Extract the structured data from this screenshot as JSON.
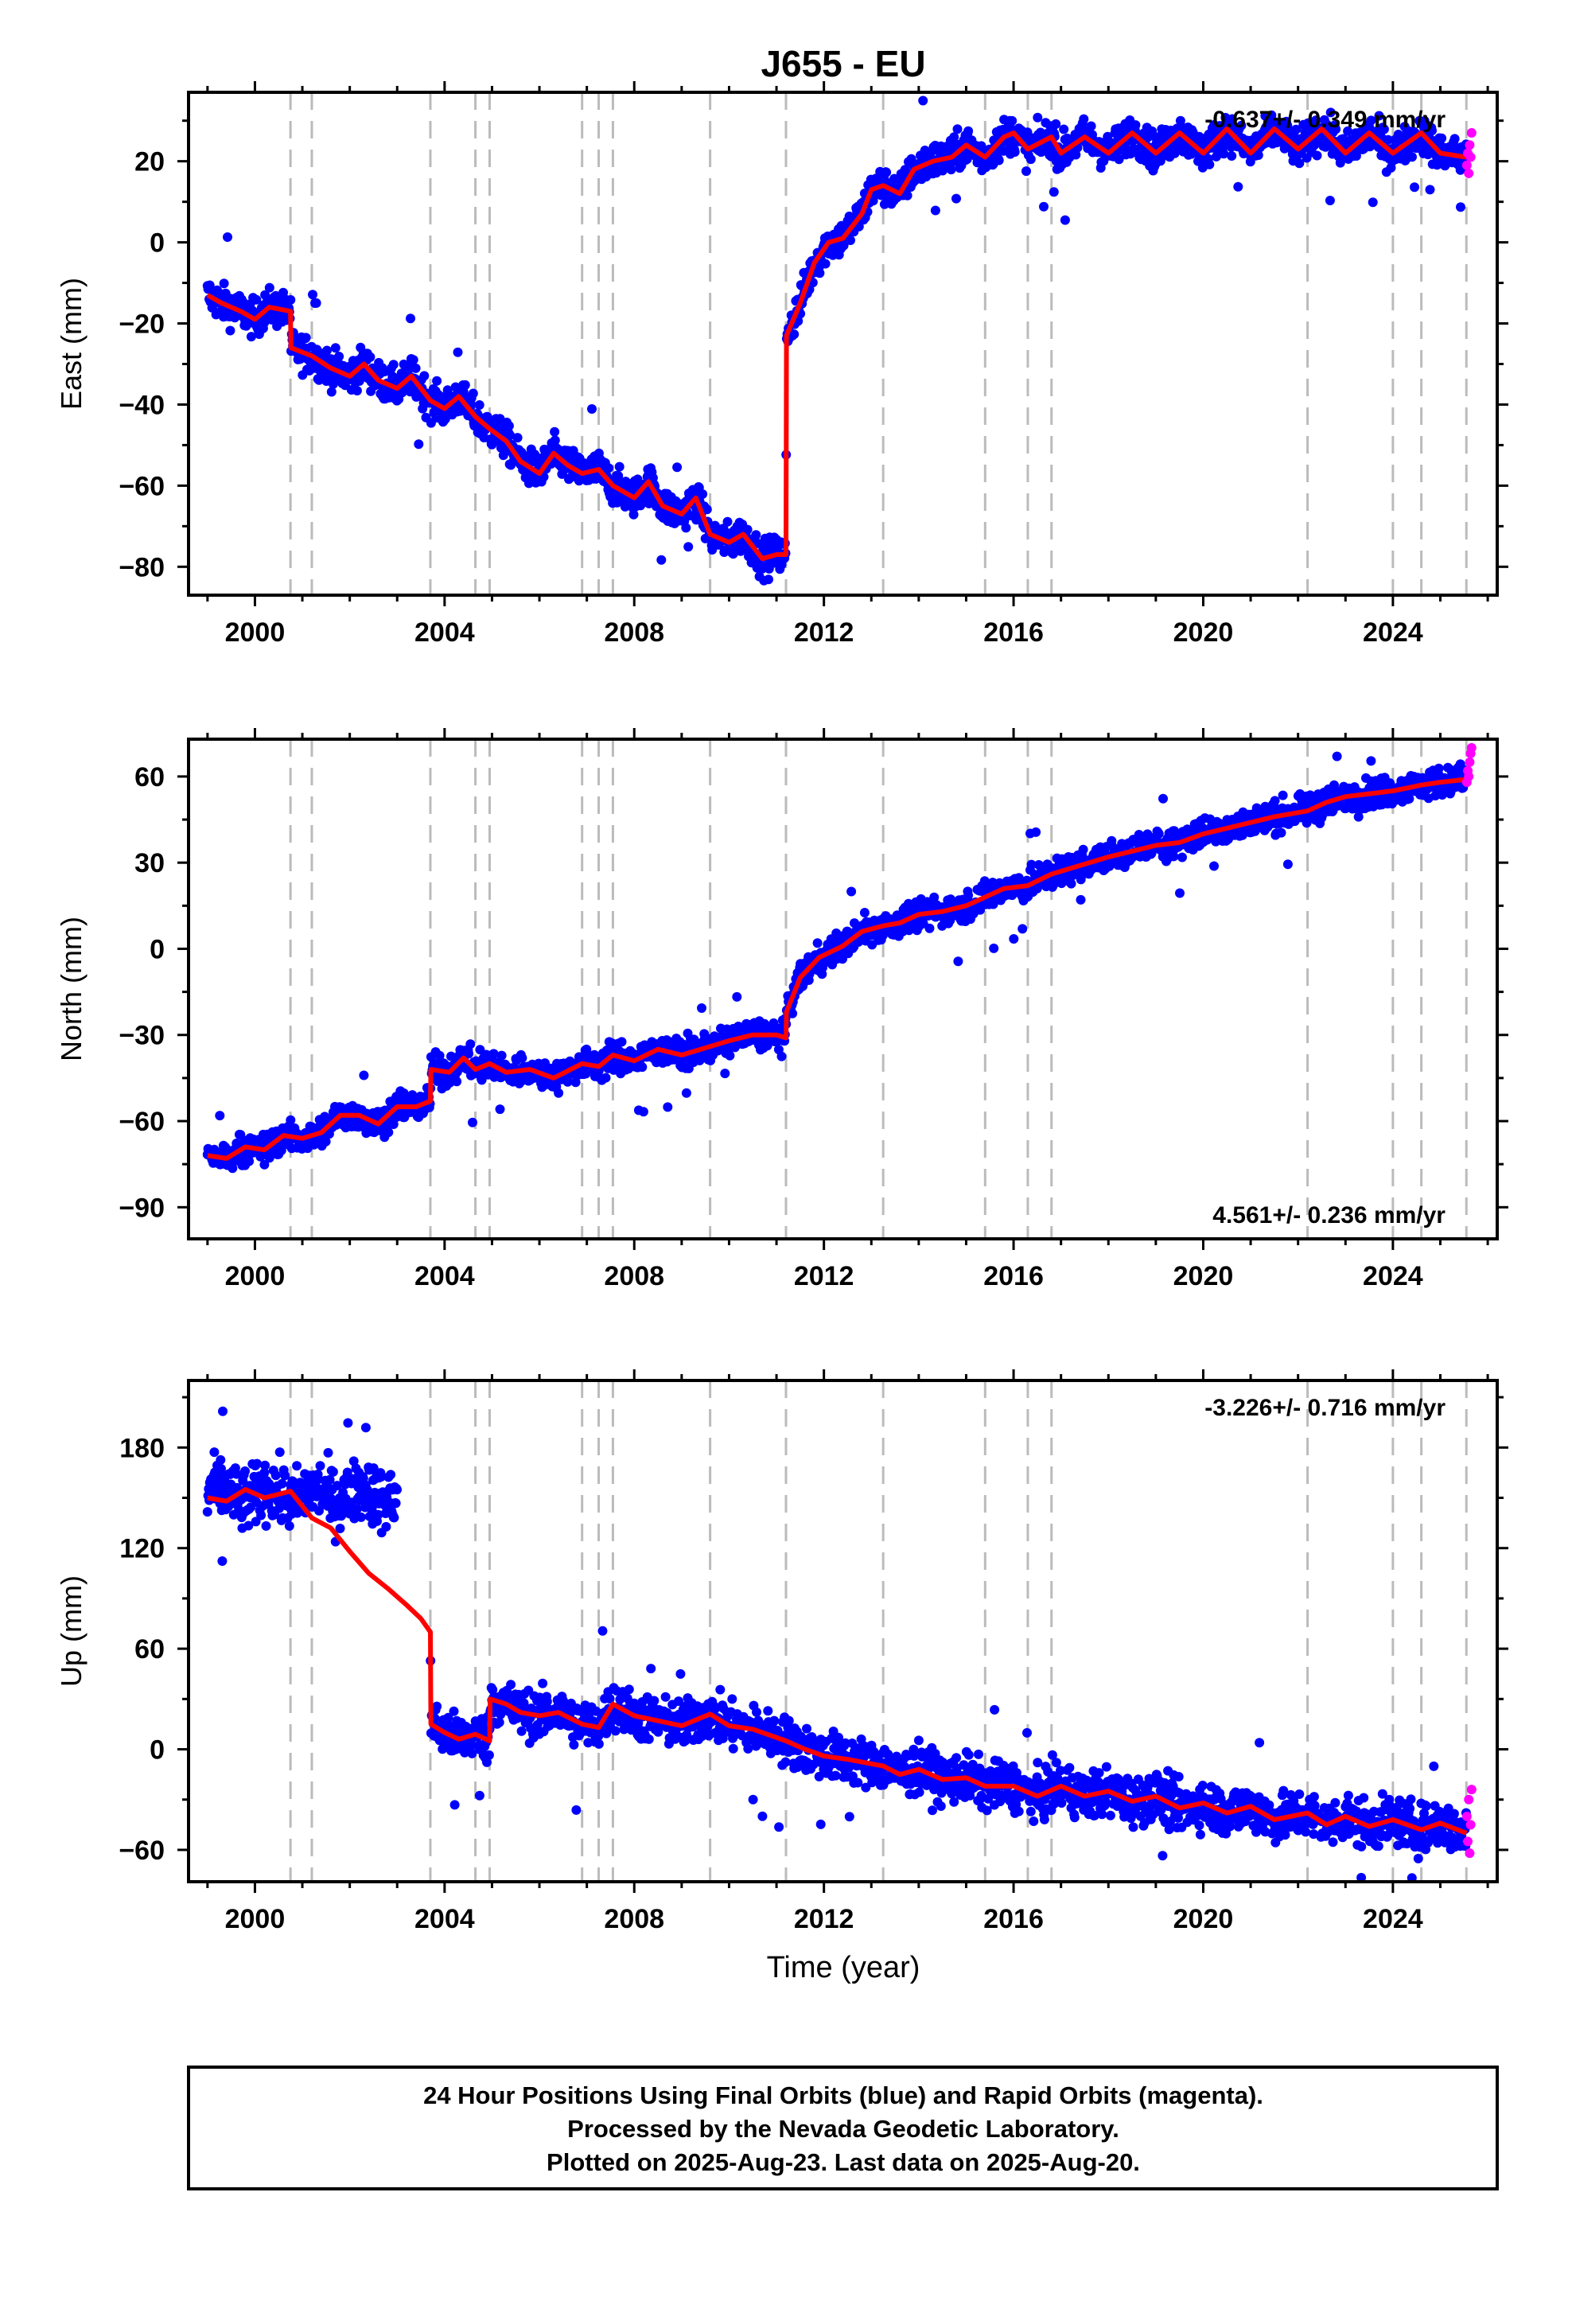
{
  "chart_data": {
    "title": "J655 - EU",
    "type": "scatter",
    "x_label": "Time (year)",
    "x_range": [
      1998.6,
      2026.2
    ],
    "x_ticks": [
      2000,
      2004,
      2008,
      2012,
      2016,
      2020,
      2024
    ],
    "x_tick_labels": [
      "2000",
      "2004",
      "2008",
      "2012",
      "2016",
      "2020",
      "2024"
    ],
    "grid": false,
    "legend": "none",
    "colors": {
      "final_orbits": "#0000ff",
      "rapid_orbits": "#ff00ff",
      "model": "#ff0000",
      "offset_lines": "#bbbbbb"
    },
    "offset_epochs": [
      2000.75,
      2001.2,
      2003.7,
      2004.65,
      2004.95,
      2006.9,
      2007.25,
      2007.55,
      2009.6,
      2011.2,
      2013.25,
      2015.4,
      2016.3,
      2016.8,
      2022.2,
      2024.0,
      2024.6,
      2025.55
    ],
    "panels": [
      {
        "ylabel": "East (mm)",
        "ylim": [
          -87,
          37
        ],
        "y_ticks": [
          -80,
          -60,
          -40,
          -20,
          0,
          20
        ],
        "y_tick_labels": [
          "−80",
          "−60",
          "−40",
          "−20",
          "0",
          "20"
        ],
        "rate_text": "-0.637+/- 0.349 mm/yr",
        "rate_position": "top-right",
        "model_curve": [
          [
            1999.0,
            -13
          ],
          [
            1999.3,
            -15
          ],
          [
            1999.7,
            -17
          ],
          [
            2000.0,
            -19
          ],
          [
            2000.3,
            -16
          ],
          [
            2000.75,
            -17
          ],
          [
            2000.76,
            -26
          ],
          [
            2001.2,
            -28
          ],
          [
            2001.6,
            -31
          ],
          [
            2002.0,
            -33
          ],
          [
            2002.3,
            -30
          ],
          [
            2002.6,
            -34
          ],
          [
            2003.0,
            -36
          ],
          [
            2003.3,
            -33
          ],
          [
            2003.7,
            -39
          ],
          [
            2004.0,
            -41
          ],
          [
            2004.3,
            -38
          ],
          [
            2004.65,
            -43
          ],
          [
            2004.95,
            -46
          ],
          [
            2005.3,
            -49
          ],
          [
            2005.6,
            -54
          ],
          [
            2006.0,
            -57
          ],
          [
            2006.3,
            -52
          ],
          [
            2006.6,
            -55
          ],
          [
            2006.9,
            -57
          ],
          [
            2007.25,
            -56
          ],
          [
            2007.55,
            -60
          ],
          [
            2008.0,
            -63
          ],
          [
            2008.3,
            -59
          ],
          [
            2008.6,
            -65
          ],
          [
            2009.0,
            -67
          ],
          [
            2009.3,
            -63
          ],
          [
            2009.6,
            -72
          ],
          [
            2010.0,
            -74
          ],
          [
            2010.3,
            -72
          ],
          [
            2010.7,
            -78
          ],
          [
            2011.0,
            -77
          ],
          [
            2011.2,
            -77
          ],
          [
            2011.21,
            -23
          ],
          [
            2011.5,
            -15
          ],
          [
            2011.8,
            -5
          ],
          [
            2012.1,
            0
          ],
          [
            2012.4,
            1
          ],
          [
            2012.8,
            7
          ],
          [
            2013.0,
            13
          ],
          [
            2013.25,
            14
          ],
          [
            2013.6,
            12
          ],
          [
            2013.9,
            18
          ],
          [
            2014.3,
            20
          ],
          [
            2014.7,
            21
          ],
          [
            2015.0,
            24
          ],
          [
            2015.4,
            21
          ],
          [
            2015.8,
            26
          ],
          [
            2016.0,
            27
          ],
          [
            2016.3,
            23
          ],
          [
            2016.8,
            26
          ],
          [
            2017.0,
            22
          ],
          [
            2017.5,
            26
          ],
          [
            2018.0,
            22
          ],
          [
            2018.5,
            27
          ],
          [
            2019.0,
            22
          ],
          [
            2019.5,
            27
          ],
          [
            2020.0,
            22
          ],
          [
            2020.5,
            28
          ],
          [
            2021.0,
            22
          ],
          [
            2021.5,
            28
          ],
          [
            2022.0,
            23
          ],
          [
            2022.5,
            28
          ],
          [
            2023.0,
            22
          ],
          [
            2023.5,
            27
          ],
          [
            2024.0,
            22
          ],
          [
            2024.6,
            27
          ],
          [
            2025.0,
            22
          ],
          [
            2025.55,
            21
          ]
        ],
        "rapid_points": [
          [
            2025.56,
            19
          ],
          [
            2025.58,
            22
          ],
          [
            2025.6,
            17
          ],
          [
            2025.62,
            24
          ],
          [
            2025.64,
            21
          ],
          [
            2025.66,
            27
          ]
        ]
      },
      {
        "ylabel": "North (mm)",
        "ylim": [
          -101,
          73
        ],
        "y_ticks": [
          -90,
          -60,
          -30,
          0,
          30,
          60
        ],
        "y_tick_labels": [
          "−90",
          "−60",
          "−30",
          "0",
          "30",
          "60"
        ],
        "rate_text": "4.561+/- 0.236 mm/yr",
        "rate_position": "bottom-right",
        "model_curve": [
          [
            1999.0,
            -72
          ],
          [
            1999.4,
            -73
          ],
          [
            1999.8,
            -69
          ],
          [
            2000.2,
            -70
          ],
          [
            2000.6,
            -65
          ],
          [
            2001.0,
            -66
          ],
          [
            2001.4,
            -64
          ],
          [
            2001.8,
            -58
          ],
          [
            2002.2,
            -58
          ],
          [
            2002.6,
            -61
          ],
          [
            2003.0,
            -55
          ],
          [
            2003.4,
            -55
          ],
          [
            2003.7,
            -53
          ],
          [
            2003.71,
            -42
          ],
          [
            2004.1,
            -43
          ],
          [
            2004.4,
            -38
          ],
          [
            2004.65,
            -42
          ],
          [
            2004.95,
            -40
          ],
          [
            2005.3,
            -43
          ],
          [
            2005.8,
            -42
          ],
          [
            2006.3,
            -45
          ],
          [
            2006.9,
            -40
          ],
          [
            2007.25,
            -41
          ],
          [
            2007.55,
            -37
          ],
          [
            2008.0,
            -39
          ],
          [
            2008.5,
            -35
          ],
          [
            2009.0,
            -37
          ],
          [
            2009.6,
            -34
          ],
          [
            2010.0,
            -32
          ],
          [
            2010.5,
            -30
          ],
          [
            2011.0,
            -30
          ],
          [
            2011.2,
            -31
          ],
          [
            2011.21,
            -22
          ],
          [
            2011.5,
            -10
          ],
          [
            2011.9,
            -3
          ],
          [
            2012.4,
            1
          ],
          [
            2012.8,
            6
          ],
          [
            2013.25,
            8
          ],
          [
            2013.6,
            9
          ],
          [
            2014.0,
            12
          ],
          [
            2014.5,
            13
          ],
          [
            2015.0,
            15
          ],
          [
            2015.4,
            18
          ],
          [
            2015.8,
            21
          ],
          [
            2016.3,
            22
          ],
          [
            2016.8,
            26
          ],
          [
            2017.2,
            28
          ],
          [
            2017.6,
            30
          ],
          [
            2018.0,
            32
          ],
          [
            2018.5,
            34
          ],
          [
            2019.0,
            36
          ],
          [
            2019.5,
            37
          ],
          [
            2020.0,
            40
          ],
          [
            2020.5,
            42
          ],
          [
            2021.0,
            44
          ],
          [
            2021.5,
            46
          ],
          [
            2022.2,
            48
          ],
          [
            2022.6,
            51
          ],
          [
            2023.0,
            53
          ],
          [
            2023.5,
            54
          ],
          [
            2024.0,
            55
          ],
          [
            2024.6,
            57
          ],
          [
            2025.0,
            58
          ],
          [
            2025.55,
            59
          ]
        ],
        "rapid_points": [
          [
            2025.56,
            58
          ],
          [
            2025.58,
            62
          ],
          [
            2025.6,
            60
          ],
          [
            2025.62,
            65
          ],
          [
            2025.64,
            68
          ],
          [
            2025.66,
            70
          ]
        ]
      },
      {
        "ylabel": "Up (mm)",
        "ylim": [
          -79,
          220
        ],
        "y_ticks": [
          -60,
          0,
          60,
          120,
          180
        ],
        "y_tick_labels": [
          "−60",
          "0",
          "60",
          "120",
          "180"
        ],
        "rate_text": "-3.226+/- 0.716 mm/yr",
        "rate_position": "top-right",
        "data_gap": [
          2003.0,
          2003.7
        ],
        "model_curve": [
          [
            1999.0,
            150
          ],
          [
            1999.4,
            148
          ],
          [
            1999.8,
            155
          ],
          [
            2000.2,
            150
          ],
          [
            2000.75,
            154
          ],
          [
            2001.2,
            138
          ],
          [
            2001.6,
            132
          ],
          [
            2002.0,
            118
          ],
          [
            2002.4,
            105
          ],
          [
            2002.8,
            96
          ],
          [
            2003.2,
            86
          ],
          [
            2003.5,
            78
          ],
          [
            2003.7,
            70
          ],
          [
            2003.71,
            15
          ],
          [
            2004.0,
            10
          ],
          [
            2004.3,
            6
          ],
          [
            2004.65,
            9
          ],
          [
            2004.95,
            5
          ],
          [
            2004.96,
            30
          ],
          [
            2005.3,
            27
          ],
          [
            2005.6,
            22
          ],
          [
            2006.0,
            20
          ],
          [
            2006.4,
            22
          ],
          [
            2006.9,
            15
          ],
          [
            2007.25,
            13
          ],
          [
            2007.55,
            27
          ],
          [
            2008.0,
            20
          ],
          [
            2008.5,
            17
          ],
          [
            2009.0,
            14
          ],
          [
            2009.6,
            21
          ],
          [
            2010.0,
            14
          ],
          [
            2010.5,
            12
          ],
          [
            2011.2,
            5
          ],
          [
            2011.6,
            0
          ],
          [
            2012.0,
            -4
          ],
          [
            2012.5,
            -6
          ],
          [
            2013.25,
            -10
          ],
          [
            2013.6,
            -15
          ],
          [
            2014.0,
            -12
          ],
          [
            2014.5,
            -18
          ],
          [
            2015.0,
            -17
          ],
          [
            2015.4,
            -22
          ],
          [
            2016.0,
            -22
          ],
          [
            2016.5,
            -28
          ],
          [
            2017.0,
            -22
          ],
          [
            2017.5,
            -28
          ],
          [
            2018.0,
            -25
          ],
          [
            2018.5,
            -31
          ],
          [
            2019.0,
            -28
          ],
          [
            2019.5,
            -35
          ],
          [
            2020.0,
            -32
          ],
          [
            2020.5,
            -38
          ],
          [
            2021.0,
            -34
          ],
          [
            2021.5,
            -42
          ],
          [
            2022.2,
            -38
          ],
          [
            2022.6,
            -45
          ],
          [
            2023.0,
            -40
          ],
          [
            2023.5,
            -46
          ],
          [
            2024.0,
            -42
          ],
          [
            2024.6,
            -48
          ],
          [
            2025.0,
            -44
          ],
          [
            2025.55,
            -50
          ]
        ],
        "rapid_points": [
          [
            2025.56,
            -40
          ],
          [
            2025.58,
            -55
          ],
          [
            2025.6,
            -30
          ],
          [
            2025.62,
            -62
          ],
          [
            2025.64,
            -45
          ],
          [
            2025.66,
            -24
          ]
        ]
      }
    ]
  },
  "footer": {
    "line1": "24 Hour Positions Using Final Orbits (blue) and Rapid Orbits (magenta).",
    "line2": "Processed by the Nevada Geodetic Laboratory.",
    "line3": "Plotted on 2025-Aug-23. Last data on 2025-Aug-20."
  }
}
